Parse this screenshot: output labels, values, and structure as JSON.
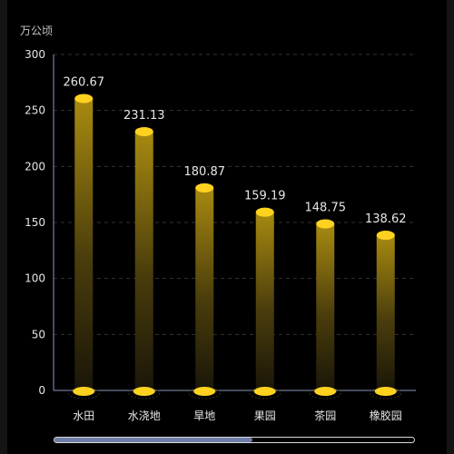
{
  "chart_data": {
    "type": "bar",
    "ylabel": "万公顷",
    "categories": [
      "水田",
      "水浇地",
      "旱地",
      "果园",
      "茶园",
      "橡胶园"
    ],
    "values": [
      260.67,
      231.13,
      180.87,
      159.19,
      148.75,
      138.62
    ],
    "data_labels": [
      "260.67",
      "231.13",
      "180.87",
      "159.19",
      "148.75",
      "138.62"
    ],
    "ylim": [
      0,
      300
    ],
    "yticks": [
      "0",
      "50",
      "100",
      "150",
      "200",
      "250",
      "300"
    ],
    "grid": true,
    "legend": "none",
    "colors": {
      "bar_top": "#a88a10",
      "bar_bottom": "#1a1608",
      "cap": "#ffd21f",
      "label": "#e6e6e6",
      "axis": "#8a96b8",
      "grid": "#333333"
    }
  },
  "scrollbar": {
    "visible_fraction": 0.55
  }
}
